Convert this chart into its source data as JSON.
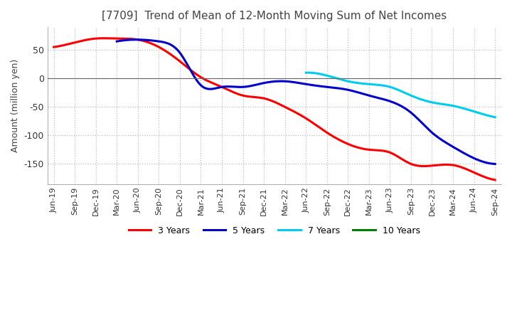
{
  "title": "[7709]  Trend of Mean of 12-Month Moving Sum of Net Incomes",
  "ylabel": "Amount (million yen)",
  "background_color": "#ffffff",
  "grid_color": "#bbbbbb",
  "legend": [
    "3 Years",
    "5 Years",
    "7 Years",
    "10 Years"
  ],
  "legend_colors": [
    "#ff0000",
    "#0000cd",
    "#00ccee",
    "#008000"
  ],
  "x_labels": [
    "Jun-19",
    "Sep-19",
    "Dec-19",
    "Mar-20",
    "Jun-20",
    "Sep-20",
    "Dec-20",
    "Mar-21",
    "Jun-21",
    "Sep-21",
    "Dec-21",
    "Mar-22",
    "Jun-22",
    "Sep-22",
    "Dec-22",
    "Mar-23",
    "Jun-23",
    "Sep-23",
    "Dec-23",
    "Mar-24",
    "Jun-24",
    "Sep-24"
  ],
  "ylim": [
    -185,
    90
  ],
  "yticks": [
    50,
    0,
    -50,
    -100,
    -150
  ],
  "series_3y": [
    55,
    63,
    70,
    70,
    68,
    55,
    30,
    2,
    -15,
    -30,
    -35,
    -50,
    -70,
    -95,
    -115,
    -125,
    -130,
    -150,
    -153,
    -152,
    -165,
    -178
  ],
  "series_5y": [
    null,
    null,
    null,
    65,
    68,
    65,
    45,
    -12,
    -15,
    -15,
    -8,
    -5,
    -10,
    -15,
    -20,
    -30,
    -40,
    -60,
    -95,
    -120,
    -140,
    -150
  ],
  "series_7y": [
    null,
    null,
    null,
    null,
    null,
    null,
    null,
    null,
    null,
    null,
    null,
    null,
    10,
    5,
    -5,
    -10,
    -15,
    -30,
    -42,
    -48,
    -58,
    -68
  ],
  "series_10y": [
    null,
    null,
    null,
    null,
    null,
    null,
    null,
    null,
    null,
    null,
    null,
    null,
    null,
    null,
    null,
    null,
    null,
    null,
    null,
    null,
    null,
    null
  ]
}
